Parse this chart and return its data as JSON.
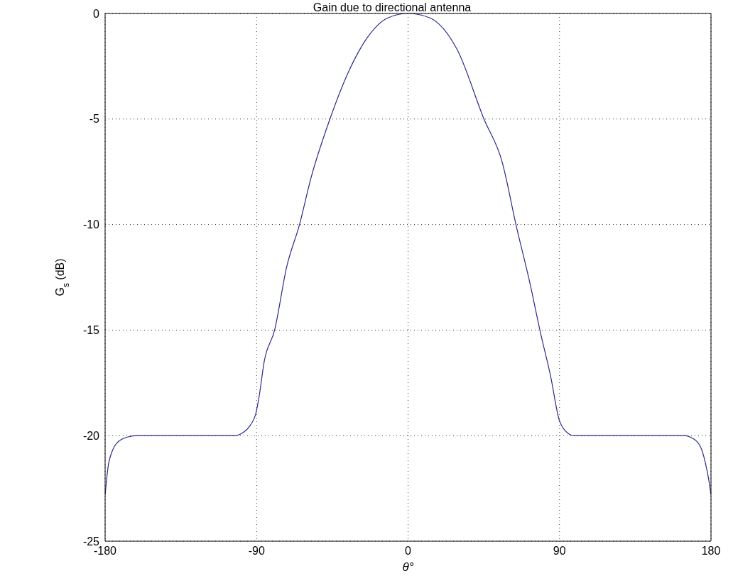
{
  "chart_data": {
    "type": "line",
    "title": "Gain due to directional antenna",
    "xlabel": "θ°",
    "ylabel": "G$_{s}$ (dB)",
    "series": [
      {
        "color": "#2a2a8c",
        "x": [
          -180,
          -178.1,
          -176.1,
          -173,
          -166.8,
          -160.6,
          -130,
          -103,
          -98.9,
          -93.7,
          -90.6,
          -88.6,
          -85.5,
          -79.3,
          -72.1,
          -64.5,
          -57.7,
          -46.4,
          -35,
          -24.7,
          -11.8,
          0,
          12.7,
          29.1,
          45.1,
          55.8,
          64.4,
          72.2,
          78.9,
          84.5,
          90,
          92.7,
          98.8,
          111,
          140,
          164.4,
          168.5,
          173.6,
          176.7,
          178.7,
          180
        ],
        "values": [
          -22.8,
          -21.4,
          -20.8,
          -20.35,
          -20.07,
          -20,
          -20,
          -20,
          -19.9,
          -19.5,
          -19,
          -18.2,
          -16.5,
          -15,
          -12,
          -10,
          -7.8,
          -5,
          -2.7,
          -1.2,
          -0.2,
          0,
          -0.2,
          -1.7,
          -5,
          -7,
          -10.1,
          -12.7,
          -15.2,
          -17.1,
          -19.3,
          -19.7,
          -20,
          -20,
          -20,
          -20,
          -20.1,
          -20.5,
          -21.3,
          -22.1,
          -22.8
        ]
      }
    ],
    "xlim": [
      -180,
      180
    ],
    "xticks": [
      -180,
      -90,
      0,
      90,
      180
    ],
    "ylim": [
      -25,
      0
    ],
    "yticks": [
      -25,
      -20,
      -15,
      -10,
      -5,
      0
    ],
    "grid": true,
    "marker": "none",
    "line_style": "solid"
  }
}
